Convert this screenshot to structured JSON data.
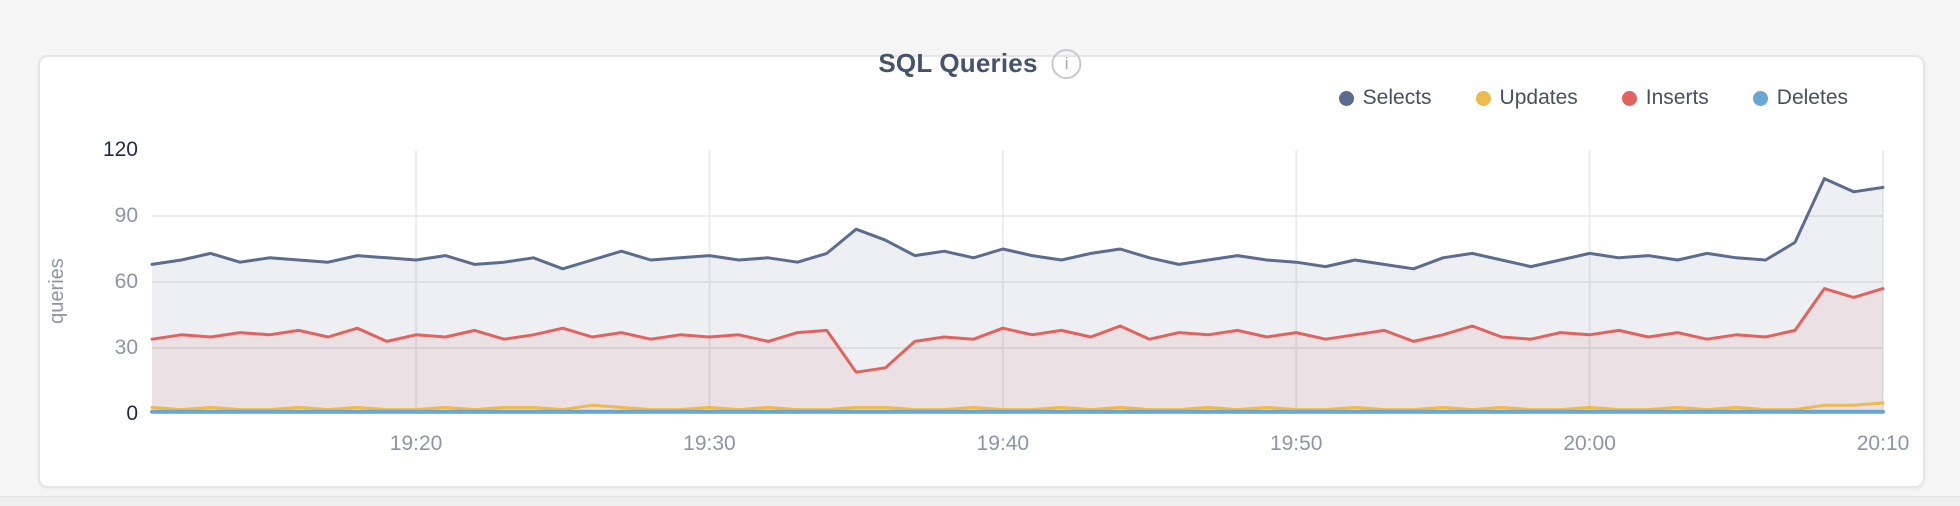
{
  "header": {
    "title": "SQL Queries",
    "info_icon_glyph": "i"
  },
  "legend": {
    "position": "top-right",
    "items": [
      {
        "label": "Selects",
        "color": "#5b6c8e"
      },
      {
        "label": "Updates",
        "color": "#edba4d"
      },
      {
        "label": "Inserts",
        "color": "#e2635e"
      },
      {
        "label": "Deletes",
        "color": "#66a7d6"
      }
    ]
  },
  "colors": {
    "page_background": "#f5f5f6",
    "card_background": "#ffffff",
    "card_border": "#e6e6e8",
    "grid_line": "#ebecee",
    "tick_gray": "#8b95a7",
    "tick_dark": "#1e2b42",
    "title_text": "#44546b"
  },
  "chart_data": {
    "type": "area",
    "title": "SQL Queries",
    "xlabel": "",
    "ylabel": "queries",
    "ylim": [
      0,
      120
    ],
    "yticks": [
      0,
      30,
      60,
      90,
      120
    ],
    "xticks": [
      "19:20",
      "19:30",
      "19:40",
      "19:50",
      "20:00",
      "20:10"
    ],
    "grid": true,
    "legend_position": "top-right",
    "x": [
      "19:11",
      "19:12",
      "19:13",
      "19:14",
      "19:15",
      "19:16",
      "19:17",
      "19:18",
      "19:19",
      "19:20",
      "19:21",
      "19:22",
      "19:23",
      "19:24",
      "19:25",
      "19:26",
      "19:27",
      "19:28",
      "19:29",
      "19:30",
      "19:31",
      "19:32",
      "19:33",
      "19:34",
      "19:35",
      "19:36",
      "19:37",
      "19:38",
      "19:39",
      "19:40",
      "19:41",
      "19:42",
      "19:43",
      "19:44",
      "19:45",
      "19:46",
      "19:47",
      "19:48",
      "19:49",
      "19:50",
      "19:51",
      "19:52",
      "19:53",
      "19:54",
      "19:55",
      "19:56",
      "19:57",
      "19:58",
      "19:59",
      "20:00",
      "20:01",
      "20:02",
      "20:03",
      "20:04",
      "20:05",
      "20:06",
      "20:07",
      "20:08",
      "20:09",
      "20:10"
    ],
    "series": [
      {
        "name": "Selects",
        "color": "#5b6c8e",
        "fill": "rgba(91,108,142,0.11)",
        "stroke_width": 3,
        "values": [
          68,
          70,
          73,
          69,
          71,
          70,
          69,
          72,
          71,
          70,
          72,
          68,
          69,
          71,
          66,
          70,
          74,
          70,
          71,
          72,
          70,
          71,
          69,
          73,
          84,
          79,
          72,
          74,
          71,
          75,
          72,
          70,
          73,
          75,
          71,
          68,
          70,
          72,
          70,
          69,
          67,
          70,
          68,
          66,
          71,
          73,
          70,
          67,
          70,
          73,
          71,
          72,
          70,
          73,
          71,
          70,
          78,
          107,
          101,
          103
        ]
      },
      {
        "name": "Updates",
        "color": "#edba4d",
        "fill": "none",
        "stroke_width": 3,
        "values": [
          3,
          2,
          3,
          2,
          2,
          3,
          2,
          3,
          2,
          2,
          3,
          2,
          3,
          3,
          2,
          4,
          3,
          2,
          2,
          3,
          2,
          3,
          2,
          2,
          3,
          3,
          2,
          2,
          3,
          2,
          2,
          3,
          2,
          3,
          2,
          2,
          3,
          2,
          3,
          2,
          2,
          3,
          2,
          2,
          3,
          2,
          3,
          2,
          2,
          3,
          2,
          2,
          3,
          2,
          3,
          2,
          2,
          4,
          4,
          5
        ]
      },
      {
        "name": "Inserts",
        "color": "#e2635e",
        "fill": "rgba(226,99,94,0.10)",
        "stroke_width": 3,
        "values": [
          34,
          36,
          35,
          37,
          36,
          38,
          35,
          39,
          33,
          36,
          35,
          38,
          34,
          36,
          39,
          35,
          37,
          34,
          36,
          35,
          36,
          33,
          37,
          38,
          19,
          21,
          33,
          35,
          34,
          39,
          36,
          38,
          35,
          40,
          34,
          37,
          36,
          38,
          35,
          37,
          34,
          36,
          38,
          33,
          36,
          40,
          35,
          34,
          37,
          36,
          38,
          35,
          37,
          34,
          36,
          35,
          38,
          57,
          53,
          57
        ]
      },
      {
        "name": "Deletes",
        "color": "#66a7d6",
        "fill": "none",
        "stroke_width": 4,
        "values": [
          1,
          1,
          1,
          1,
          1,
          1,
          1,
          1,
          1,
          1,
          1,
          1,
          1,
          1,
          1,
          1,
          1,
          1,
          1,
          1,
          1,
          1,
          1,
          1,
          1,
          1,
          1,
          1,
          1,
          1,
          1,
          1,
          1,
          1,
          1,
          1,
          1,
          1,
          1,
          1,
          1,
          1,
          1,
          1,
          1,
          1,
          1,
          1,
          1,
          1,
          1,
          1,
          1,
          1,
          1,
          1,
          1,
          1,
          1,
          1
        ]
      }
    ]
  }
}
